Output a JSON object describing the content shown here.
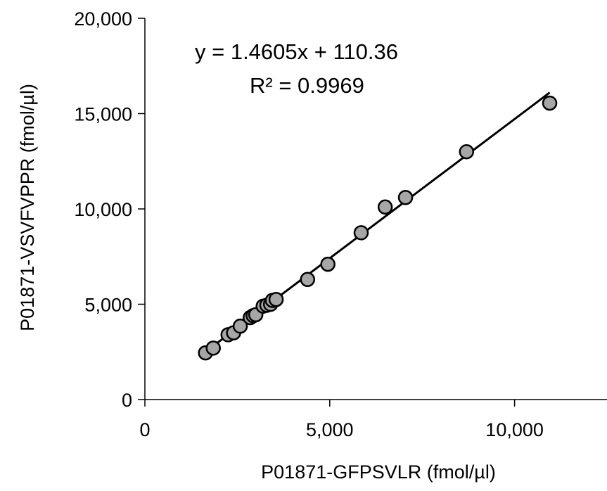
{
  "chart_data": {
    "type": "scatter",
    "xlabel": "P01871-GFPSVLR (fmol/µl)",
    "ylabel": "P01871-VSVFVPPR (fmol/µl)",
    "xlim": [
      0,
      12500
    ],
    "ylim": [
      0,
      20000
    ],
    "x_ticks": [
      0,
      5000,
      10000
    ],
    "x_tick_labels": [
      "0",
      "5,000",
      "10,000"
    ],
    "y_ticks": [
      0,
      5000,
      10000,
      15000,
      20000
    ],
    "y_tick_labels": [
      "0",
      "5,000",
      "10,000",
      "15,000",
      "20,000"
    ],
    "grid": false,
    "legend": "none",
    "marker_fill": "#a6a6a6",
    "marker_edge": "#000000",
    "line_color": "#000000",
    "series": [
      {
        "x": [
          1640,
          1850,
          2250,
          2400,
          2580,
          2850,
          2930,
          3000,
          3200,
          3300,
          3400,
          3450,
          3550,
          4400,
          4950,
          5850,
          6500,
          7050,
          8700,
          10950
        ],
        "y": [
          2450,
          2700,
          3400,
          3500,
          3850,
          4300,
          4400,
          4450,
          4900,
          4950,
          5000,
          5200,
          5250,
          6300,
          7100,
          8750,
          10100,
          10600,
          13000,
          15550
        ]
      }
    ],
    "trendline": {
      "slope": 1.4605,
      "intercept": 110.36,
      "x_range": [
        1640,
        10950
      ]
    },
    "annotations": [
      "y = 1.4605x + 110.36",
      "R² = 0.9969"
    ]
  }
}
